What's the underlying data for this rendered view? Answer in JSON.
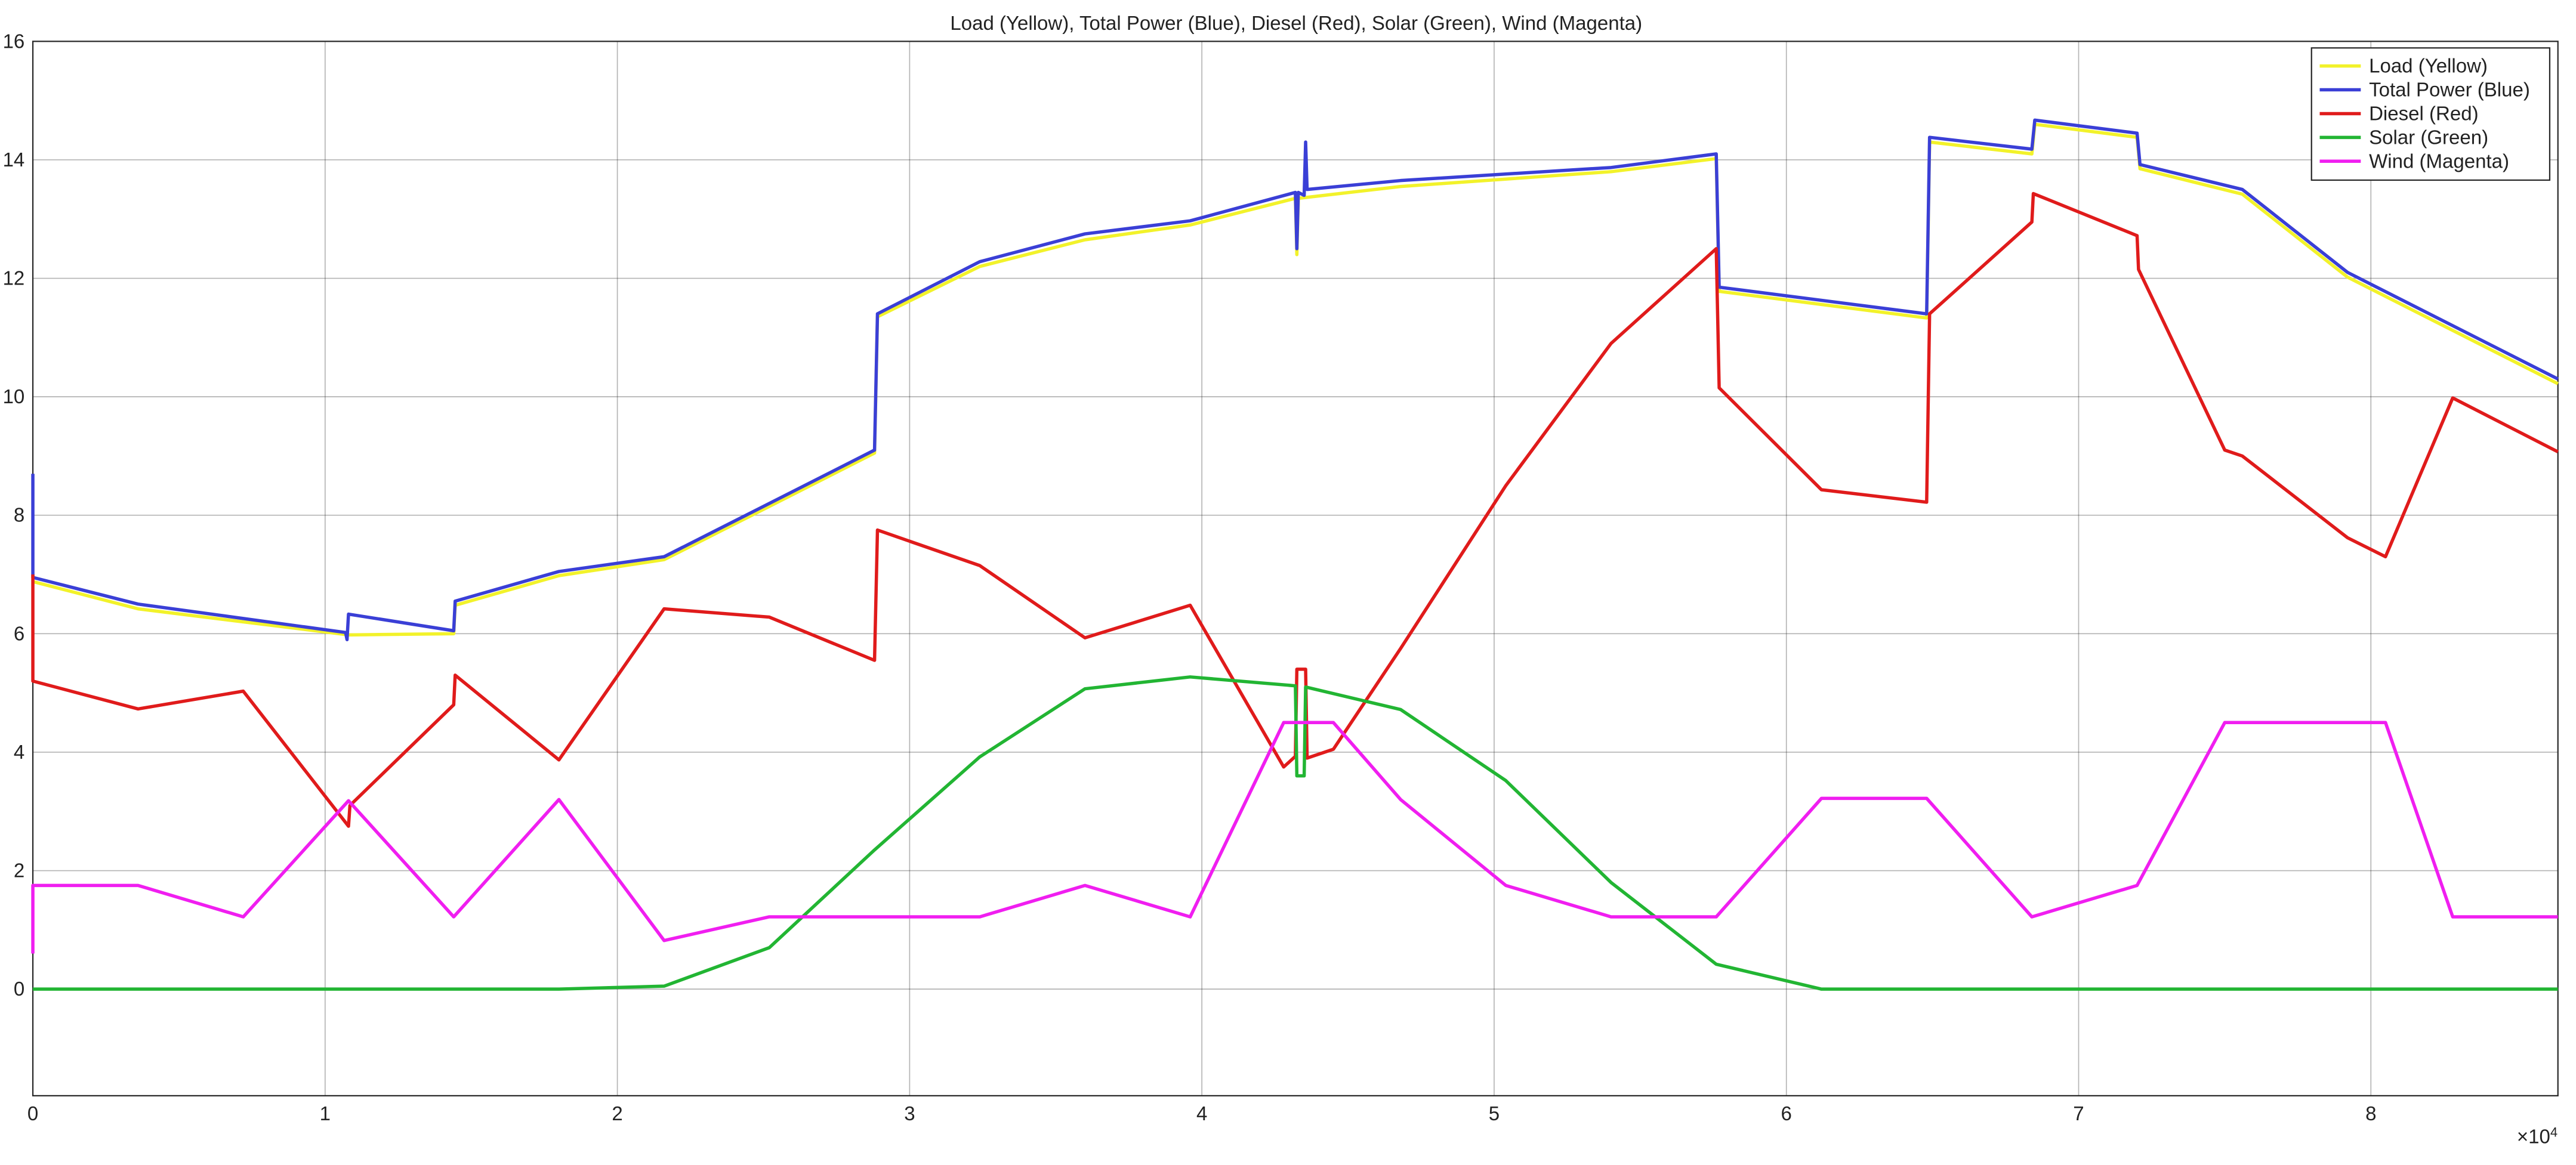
{
  "chart_data": {
    "type": "line",
    "title": "Load (Yellow), Total Power (Blue), Diesel (Red), Solar (Green), Wind (Magenta)",
    "xlim": [
      0,
      86400
    ],
    "ylim": [
      -1.8,
      16
    ],
    "xticks": [
      0,
      {
        "value": 10000,
        "label": "1"
      },
      {
        "value": 20000,
        "label": "2"
      },
      {
        "value": 30000,
        "label": "3"
      },
      {
        "value": 40000,
        "label": "4"
      },
      {
        "value": 50000,
        "label": "5"
      },
      {
        "value": 60000,
        "label": "6"
      },
      {
        "value": 70000,
        "label": "7"
      },
      {
        "value": 80000,
        "label": "8"
      }
    ],
    "x_exponent": {
      "base": "×10",
      "power": "4"
    },
    "yticks": [
      0,
      2,
      4,
      6,
      8,
      10,
      12,
      14,
      16
    ],
    "grid": true,
    "legend": "top-right",
    "series": [
      {
        "name": "Load (Yellow)",
        "color": "#f2f22a",
        "x": [
          0,
          3600,
          10800,
          14400,
          14450,
          18000,
          21600,
          28800,
          28900,
          32400,
          36000,
          39600,
          43200,
          43250,
          43300,
          46800,
          54000,
          57600,
          57700,
          64800,
          64900,
          68400,
          68500,
          72000,
          72100,
          75600,
          79200,
          86400
        ],
        "values": [
          6.88,
          6.42,
          5.98,
          6.0,
          6.48,
          6.98,
          7.25,
          9.05,
          11.35,
          12.2,
          12.65,
          12.9,
          13.35,
          12.4,
          13.35,
          13.55,
          13.8,
          14.02,
          11.78,
          11.33,
          14.3,
          14.1,
          14.6,
          14.38,
          13.85,
          13.42,
          12.02,
          10.22
        ]
      },
      {
        "name": "Total Power (Blue)",
        "color": "#3a3fd6",
        "x": [
          0,
          0,
          3600,
          10700,
          10750,
          10800,
          14400,
          14450,
          18000,
          21600,
          28800,
          28900,
          32400,
          36000,
          39600,
          43200,
          43250,
          43300,
          43500,
          43550,
          43600,
          46800,
          54000,
          57600,
          57700,
          64800,
          64900,
          68400,
          68500,
          72000,
          72100,
          75600,
          79200,
          86400
        ],
        "values": [
          8.7,
          6.95,
          6.5,
          6.02,
          5.9,
          6.33,
          6.05,
          6.55,
          7.05,
          7.3,
          9.1,
          11.4,
          12.28,
          12.75,
          12.97,
          13.45,
          12.5,
          13.45,
          13.4,
          14.3,
          13.5,
          13.65,
          13.87,
          14.1,
          11.85,
          11.4,
          14.38,
          14.18,
          14.67,
          14.45,
          13.92,
          13.5,
          12.1,
          10.3
        ]
      },
      {
        "name": "Diesel (Red)",
        "color": "#e01b1b",
        "x": [
          0,
          0,
          3600,
          7200,
          10800,
          10850,
          14400,
          14450,
          18000,
          21600,
          25200,
          28800,
          28900,
          32400,
          36000,
          39600,
          42800,
          43200,
          43250,
          43550,
          43600,
          44500,
          46800,
          50400,
          54000,
          57600,
          57700,
          61200,
          64800,
          64900,
          68400,
          68450,
          72000,
          72050,
          75000,
          75600,
          79200,
          80500,
          82800,
          86400
        ],
        "values": [
          7.0,
          5.2,
          4.73,
          5.03,
          2.75,
          3.1,
          4.8,
          5.3,
          3.87,
          6.42,
          6.28,
          5.55,
          7.75,
          7.15,
          5.93,
          6.48,
          3.75,
          3.93,
          5.4,
          5.4,
          3.9,
          4.05,
          5.75,
          8.5,
          10.9,
          12.5,
          10.15,
          8.43,
          8.22,
          11.4,
          12.95,
          13.43,
          12.72,
          12.15,
          9.1,
          9.0,
          7.62,
          7.3,
          9.98,
          9.07
        ]
      },
      {
        "name": "Solar (Green)",
        "color": "#22b533",
        "x": [
          0,
          18000,
          21600,
          25200,
          28800,
          32400,
          36000,
          39600,
          43200,
          43250,
          43500,
          43550,
          46800,
          50400,
          54000,
          57600,
          61200,
          86400
        ],
        "values": [
          0,
          0,
          0.05,
          0.7,
          2.35,
          3.92,
          5.07,
          5.27,
          5.12,
          3.6,
          3.6,
          5.1,
          4.72,
          3.52,
          1.8,
          0.42,
          0,
          0
        ]
      },
      {
        "name": "Wind (Magenta)",
        "color": "#f01ef0",
        "x": [
          0,
          0,
          3600,
          7200,
          10800,
          14400,
          18000,
          21600,
          25200,
          32400,
          36000,
          39600,
          42800,
          44500,
          46800,
          50400,
          54000,
          57600,
          61200,
          64800,
          68400,
          72000,
          75000,
          80500,
          82800,
          86400
        ],
        "values": [
          0.6,
          1.75,
          1.75,
          1.22,
          3.18,
          1.22,
          3.2,
          0.82,
          1.22,
          1.22,
          1.75,
          1.22,
          4.5,
          4.5,
          3.2,
          1.75,
          1.22,
          1.22,
          3.22,
          3.22,
          1.22,
          1.75,
          4.5,
          4.5,
          1.22,
          1.22
        ]
      }
    ]
  }
}
